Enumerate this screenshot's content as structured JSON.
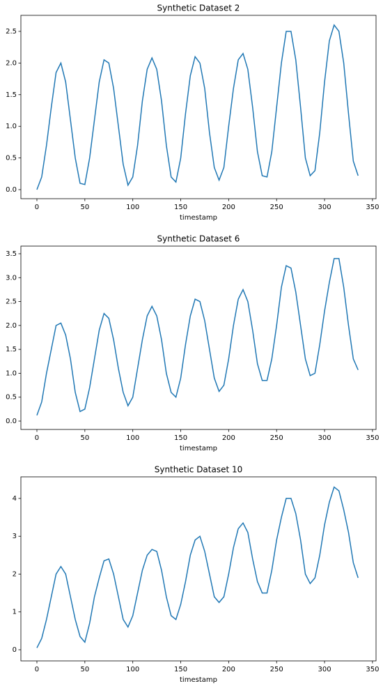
{
  "chart_data": [
    {
      "type": "line",
      "title": "Synthetic Dataset 2",
      "xlabel": "timestamp",
      "x": [
        0,
        5,
        10,
        15,
        20,
        25,
        30,
        35,
        40,
        45,
        50,
        55,
        60,
        65,
        70,
        75,
        80,
        85,
        90,
        95,
        100,
        105,
        110,
        115,
        120,
        125,
        130,
        135,
        140,
        145,
        150,
        155,
        160,
        165,
        170,
        175,
        180,
        185,
        190,
        195,
        200,
        205,
        210,
        215,
        220,
        225,
        230,
        235,
        240,
        245,
        250,
        255,
        260,
        265,
        270,
        275,
        280,
        285,
        290,
        295,
        300,
        305,
        310,
        315,
        320,
        325,
        330,
        335
      ],
      "values": [
        0.0,
        0.2,
        0.7,
        1.3,
        1.85,
        2.0,
        1.7,
        1.1,
        0.5,
        0.1,
        0.08,
        0.5,
        1.1,
        1.7,
        2.05,
        2.0,
        1.6,
        1.0,
        0.4,
        0.07,
        0.2,
        0.7,
        1.4,
        1.9,
        2.08,
        1.9,
        1.4,
        0.7,
        0.2,
        0.12,
        0.5,
        1.2,
        1.8,
        2.1,
        2.0,
        1.6,
        0.9,
        0.35,
        0.15,
        0.35,
        1.0,
        1.6,
        2.05,
        2.15,
        1.9,
        1.3,
        0.6,
        0.22,
        0.2,
        0.6,
        1.3,
        2.0,
        2.5,
        2.5,
        2.05,
        1.3,
        0.5,
        0.22,
        0.3,
        0.9,
        1.7,
        2.35,
        2.6,
        2.5,
        2.0,
        1.2,
        0.45,
        0.22
      ],
      "color": "#1f77b4",
      "xlim": [
        -16.7,
        353.7
      ],
      "xticks": [
        0,
        50,
        100,
        150,
        200,
        250,
        300,
        350
      ],
      "ylim": [
        -0.143,
        2.753
      ],
      "yticks": [
        {
          "value": 0,
          "label": "0.0"
        },
        {
          "value": 0.5,
          "label": "0.5"
        },
        {
          "value": 1,
          "label": "1.0"
        },
        {
          "value": 1.5,
          "label": "1.5"
        },
        {
          "value": 2,
          "label": "2.0"
        },
        {
          "value": 2.5,
          "label": "2.5"
        }
      ]
    },
    {
      "type": "line",
      "title": "Synthetic Dataset 6",
      "xlabel": "timestamp",
      "x": [
        0,
        5,
        10,
        15,
        20,
        25,
        30,
        35,
        40,
        45,
        50,
        55,
        60,
        65,
        70,
        75,
        80,
        85,
        90,
        95,
        100,
        105,
        110,
        115,
        120,
        125,
        130,
        135,
        140,
        145,
        150,
        155,
        160,
        165,
        170,
        175,
        180,
        185,
        190,
        195,
        200,
        205,
        210,
        215,
        220,
        225,
        230,
        235,
        240,
        245,
        250,
        255,
        260,
        265,
        270,
        275,
        280,
        285,
        290,
        295,
        300,
        305,
        310,
        315,
        320,
        325,
        330,
        335
      ],
      "values": [
        0.12,
        0.4,
        1.0,
        1.5,
        2.0,
        2.05,
        1.8,
        1.3,
        0.6,
        0.2,
        0.25,
        0.7,
        1.3,
        1.9,
        2.25,
        2.15,
        1.7,
        1.1,
        0.6,
        0.32,
        0.5,
        1.1,
        1.7,
        2.2,
        2.4,
        2.2,
        1.7,
        1.0,
        0.6,
        0.5,
        0.9,
        1.6,
        2.2,
        2.55,
        2.5,
        2.1,
        1.5,
        0.9,
        0.62,
        0.75,
        1.3,
        2.0,
        2.55,
        2.75,
        2.5,
        1.9,
        1.2,
        0.85,
        0.85,
        1.3,
        2.0,
        2.8,
        3.25,
        3.2,
        2.7,
        2.0,
        1.3,
        0.95,
        1.0,
        1.6,
        2.3,
        2.9,
        3.4,
        3.4,
        2.8,
        2.0,
        1.3,
        1.07
      ],
      "color": "#1f77b4",
      "xlim": [
        -16.7,
        353.7
      ],
      "xticks": [
        0,
        50,
        100,
        150,
        200,
        250,
        300,
        350
      ],
      "ylim": [
        -0.175,
        3.66
      ],
      "yticks": [
        {
          "value": 0,
          "label": "0.0"
        },
        {
          "value": 0.5,
          "label": "0.5"
        },
        {
          "value": 1,
          "label": "1.0"
        },
        {
          "value": 1.5,
          "label": "1.5"
        },
        {
          "value": 2,
          "label": "2.0"
        },
        {
          "value": 2.5,
          "label": "2.5"
        },
        {
          "value": 3,
          "label": "3.0"
        },
        {
          "value": 3.5,
          "label": "3.5"
        }
      ]
    },
    {
      "type": "line",
      "title": "Synthetic Dataset 10",
      "xlabel": "timestamp",
      "x": [
        0,
        5,
        10,
        15,
        20,
        25,
        30,
        35,
        40,
        45,
        50,
        55,
        60,
        65,
        70,
        75,
        80,
        85,
        90,
        95,
        100,
        105,
        110,
        115,
        120,
        125,
        130,
        135,
        140,
        145,
        150,
        155,
        160,
        165,
        170,
        175,
        180,
        185,
        190,
        195,
        200,
        205,
        210,
        215,
        220,
        225,
        230,
        235,
        240,
        245,
        250,
        255,
        260,
        265,
        270,
        275,
        280,
        285,
        290,
        295,
        300,
        305,
        310,
        315,
        320,
        325,
        330,
        335
      ],
      "values": [
        0.05,
        0.3,
        0.8,
        1.4,
        2.0,
        2.2,
        2.0,
        1.4,
        0.8,
        0.35,
        0.2,
        0.7,
        1.4,
        1.9,
        2.35,
        2.4,
        2.0,
        1.4,
        0.8,
        0.6,
        0.9,
        1.5,
        2.1,
        2.5,
        2.65,
        2.6,
        2.1,
        1.4,
        0.9,
        0.8,
        1.2,
        1.8,
        2.5,
        2.9,
        3.0,
        2.6,
        2.0,
        1.4,
        1.25,
        1.4,
        2.0,
        2.7,
        3.2,
        3.35,
        3.1,
        2.4,
        1.8,
        1.5,
        1.5,
        2.1,
        2.9,
        3.5,
        4.0,
        4.0,
        3.6,
        2.9,
        2.0,
        1.75,
        1.9,
        2.5,
        3.3,
        3.9,
        4.3,
        4.2,
        3.7,
        3.1,
        2.3,
        1.9
      ],
      "color": "#1f77b4",
      "xlim": [
        -16.7,
        353.7
      ],
      "xticks": [
        0,
        50,
        100,
        150,
        200,
        250,
        300,
        350
      ],
      "ylim": [
        -0.295,
        4.57
      ],
      "yticks": [
        0,
        1,
        2,
        3,
        4
      ]
    }
  ]
}
